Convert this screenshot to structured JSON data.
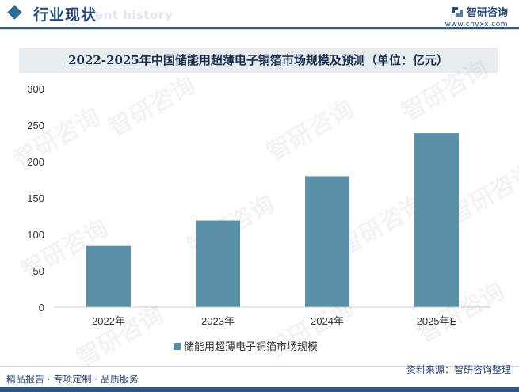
{
  "header": {
    "section_title": "行业现状",
    "section_ghost": "ent history",
    "brand_name": "智研咨询",
    "brand_url": "www.chyxx.com"
  },
  "title": "2022-2025年中国储能用超薄电子铜箔市场规模及预测（单位：亿元）",
  "chart_data": {
    "type": "bar",
    "title": "2022-2025年中国储能用超薄电子铜箔市场规模及预测（单位：亿元）",
    "categories": [
      "2022年",
      "2023年",
      "2024年",
      "2025年E"
    ],
    "series": [
      {
        "name": "储能用超薄电子铜箔市场规模",
        "values": [
          84,
          119,
          180,
          239
        ],
        "color": "#5a8fa8"
      }
    ],
    "ylim": [
      0,
      300
    ],
    "yticks": [
      0,
      50,
      100,
      150,
      200,
      250,
      300
    ],
    "grid": false,
    "legend": "bottom"
  },
  "footer": {
    "left": "精品报告 · 专项定制 · 品质服务",
    "right": "资料来源：智研咨询整理"
  },
  "watermark": "智研咨询",
  "colors": {
    "primary": "#2e5b8c",
    "bar": "#5a8fa8",
    "title_bg": "#e7ecf1"
  }
}
